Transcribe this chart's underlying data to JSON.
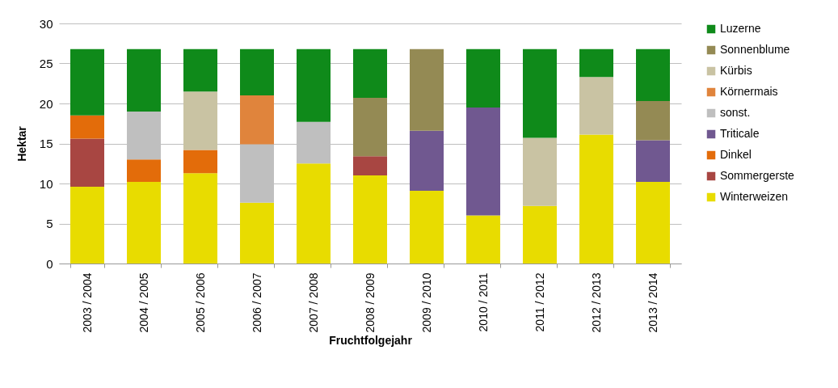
{
  "chart_data": {
    "type": "bar",
    "stacked": true,
    "xlabel": "Fruchtfolgejahr",
    "ylabel": "Hektar",
    "categories": [
      "2003 / 2004",
      "2004 / 2005",
      "2005 / 2006",
      "2006 / 2007",
      "2007 / 2008",
      "2008 / 2009",
      "2009 / 2010",
      "2010 / 2011",
      "2011 / 2012",
      "2012 / 2013",
      "2013 / 2014"
    ],
    "series": [
      {
        "name": "Winterweizen",
        "color": "#e8dc00",
        "values": [
          9.6,
          10.2,
          11.3,
          7.6,
          12.5,
          11.0,
          9.1,
          6.0,
          7.2,
          16.1,
          10.2
        ]
      },
      {
        "name": "Sommergerste",
        "color": "#a84642",
        "values": [
          6.0,
          null,
          null,
          null,
          null,
          2.4,
          null,
          null,
          null,
          null,
          null
        ]
      },
      {
        "name": "Dinkel",
        "color": "#e36c0a",
        "values": [
          2.9,
          2.8,
          2.9,
          null,
          null,
          null,
          null,
          null,
          null,
          null,
          null
        ]
      },
      {
        "name": "Triticale",
        "color": "#705890",
        "values": [
          null,
          null,
          null,
          null,
          null,
          null,
          7.5,
          13.5,
          null,
          null,
          5.2
        ]
      },
      {
        "name": "sonst.",
        "color": "#bfbfbf",
        "values": [
          null,
          6.0,
          null,
          7.3,
          5.2,
          null,
          null,
          null,
          null,
          null,
          null
        ]
      },
      {
        "name": "Körnermais",
        "color": "#e0843c",
        "values": [
          null,
          null,
          null,
          6.1,
          null,
          null,
          null,
          null,
          null,
          null,
          null
        ]
      },
      {
        "name": "Kürbis",
        "color": "#c9c3a3",
        "values": [
          null,
          null,
          7.3,
          null,
          null,
          null,
          null,
          null,
          8.5,
          7.2,
          null
        ]
      },
      {
        "name": "Sonnenblume",
        "color": "#948a54",
        "values": [
          null,
          null,
          null,
          null,
          null,
          7.3,
          10.2,
          null,
          null,
          null,
          4.9
        ]
      },
      {
        "name": "Luzerne",
        "color": "#0f8a1a",
        "values": [
          8.3,
          7.8,
          5.3,
          5.8,
          9.1,
          6.1,
          null,
          7.3,
          11.1,
          3.5,
          6.5
        ]
      }
    ],
    "ylim": [
      0,
      30
    ],
    "yticks": [
      0,
      5,
      10,
      15,
      20,
      25,
      30
    ],
    "grid": "y",
    "legend": "right"
  }
}
